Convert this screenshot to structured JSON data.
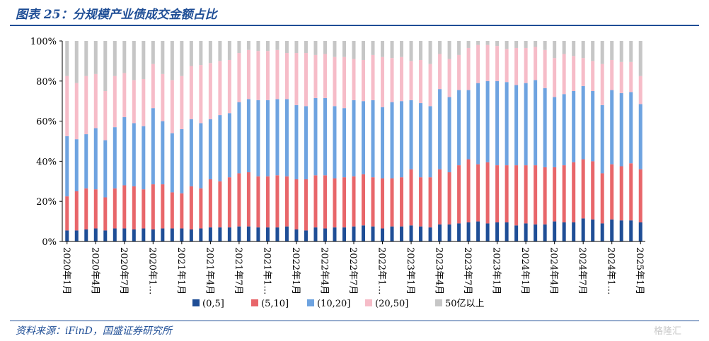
{
  "header": {
    "title": "图表 25：分规模产业债成交金额占比"
  },
  "footer": {
    "source": "资料来源：iFinD，国盛证券研究所",
    "watermark": "格隆汇"
  },
  "chart_data": {
    "type": "bar",
    "stacked": true,
    "percent": true,
    "categories": [
      "2020年1月",
      "2020年2月",
      "2020年3月",
      "2020年4月",
      "2020年5月",
      "2020年6月",
      "2020年7月",
      "2020年8月",
      "2020年9月",
      "2020年10月",
      "2020年11月",
      "2020年12月",
      "2021年1月",
      "2021年2月",
      "2021年3月",
      "2021年4月",
      "2021年5月",
      "2021年6月",
      "2021年7月",
      "2021年8月",
      "2021年9月",
      "2021年10月",
      "2021年11月",
      "2021年12月",
      "2022年1月",
      "2022年2月",
      "2022年3月",
      "2022年4月",
      "2022年5月",
      "2022年6月",
      "2022年7月",
      "2022年8月",
      "2022年9月",
      "2022年10月",
      "2022年11月",
      "2022年12月",
      "2023年1月",
      "2023年2月",
      "2023年3月",
      "2023年4月",
      "2023年5月",
      "2023年6月",
      "2023年7月",
      "2023年8月",
      "2023年9月",
      "2023年10月",
      "2023年11月",
      "2023年12月",
      "2024年1月",
      "2024年2月",
      "2024年3月",
      "2024年4月",
      "2024年5月",
      "2024年6月",
      "2024年7月",
      "2024年8月",
      "2024年9月",
      "2024年10月",
      "2024年11月",
      "2024年12月",
      "2025年1月"
    ],
    "tick_labels": [
      "2020年1月",
      "2020年4月",
      "2020年7月",
      "2020年1…",
      "2021年1月",
      "2021年4月",
      "2021年7月",
      "2021年1…",
      "2022年1月",
      "2022年4月",
      "2022年7月",
      "2022年1…",
      "2023年1月",
      "2023年4月",
      "2023年7月",
      "2023年1月",
      "2024年1月",
      "2024年4月",
      "2024年7月",
      "2024年1…",
      "2025年1月"
    ],
    "tick_every": 3,
    "series": [
      {
        "name": "(0,5]",
        "color": "#1f4e96",
        "values": [
          5.5,
          5.5,
          6,
          6.5,
          5.5,
          6.5,
          6.5,
          6,
          6.5,
          6,
          6.5,
          6.5,
          6.5,
          6,
          6.5,
          7,
          7,
          7,
          7.5,
          7.5,
          7,
          7,
          7,
          7.5,
          6,
          5.5,
          7,
          6.5,
          7,
          7,
          7.5,
          8,
          7.5,
          6.5,
          7.5,
          7.5,
          8,
          7.5,
          7,
          8.5,
          8.5,
          9,
          9.5,
          10,
          9,
          9.5,
          9.5,
          8,
          9,
          8.5,
          8.5,
          10,
          9.5,
          9.5,
          11.5,
          11,
          9,
          11,
          10.5,
          10.5,
          9.5
        ]
      },
      {
        "name": "(5,10]",
        "color": "#e8666a",
        "values": [
          17,
          19.5,
          20.5,
          19.5,
          16.5,
          20,
          21.5,
          21.5,
          19.5,
          22.5,
          22,
          18,
          17.5,
          21.5,
          20,
          24,
          23,
          25,
          26.5,
          27,
          25.5,
          25.5,
          26,
          25,
          25,
          25.5,
          26,
          26.5,
          24.5,
          25,
          25,
          25.5,
          24.5,
          25,
          24,
          24.5,
          28,
          24.5,
          25,
          27.5,
          26,
          29,
          31.5,
          28.5,
          30.5,
          28.5,
          28.5,
          30,
          29,
          29.5,
          28.5,
          27,
          28.5,
          30,
          29.5,
          29,
          25,
          27.5,
          27,
          28.5,
          26.5
        ]
      },
      {
        "name": "(10,20]",
        "color": "#6ea3e0",
        "values": [
          30,
          26,
          27,
          30.5,
          28.5,
          30.5,
          34,
          31.5,
          31.5,
          38,
          31.5,
          29.5,
          32,
          33.5,
          32.5,
          30,
          33,
          32,
          35.5,
          36.5,
          38,
          38,
          38,
          38.5,
          37,
          36.5,
          38.5,
          38.5,
          36,
          34.5,
          38,
          36.5,
          38.5,
          35.5,
          38,
          38,
          34.5,
          37,
          35.5,
          40,
          37.5,
          37.5,
          34.5,
          40.5,
          40.5,
          42,
          41.5,
          40,
          41,
          42.5,
          39.5,
          35,
          35.5,
          35.5,
          36.5,
          35,
          34,
          37,
          36.5,
          35.5,
          32.5
        ]
      },
      {
        "name": "(20,50]",
        "color": "#f6bcc8",
        "values": [
          30,
          28,
          29,
          27,
          24.5,
          25.5,
          22,
          21.5,
          23.5,
          22,
          23.5,
          26.5,
          26.5,
          26.5,
          29,
          28,
          27,
          26.5,
          24.5,
          24.5,
          24.5,
          24.5,
          24.5,
          23,
          26,
          26.5,
          21.5,
          22,
          24.5,
          25.5,
          20.5,
          20.5,
          22.5,
          25,
          22,
          22,
          19.5,
          21.5,
          21,
          17.5,
          19,
          17.5,
          21,
          19,
          18,
          17.5,
          16.5,
          18.5,
          17.5,
          16.5,
          19,
          19.5,
          20,
          17.5,
          14,
          15,
          20.5,
          15,
          15.5,
          15,
          14
        ]
      },
      {
        "name": "50亿以上",
        "color": "#c6c6c6",
        "values": [
          17.5,
          21,
          17.5,
          16.5,
          25,
          17.5,
          16,
          19.5,
          19,
          11.5,
          16.5,
          19.5,
          17.5,
          12.5,
          12,
          11,
          10,
          9.5,
          6,
          4.5,
          5,
          5,
          4.5,
          6,
          6,
          6,
          7,
          6.5,
          8,
          8,
          9,
          9.5,
          7,
          8,
          8.5,
          8,
          10,
          9.5,
          11.5,
          6.5,
          9,
          7,
          3.5,
          2,
          2,
          2.5,
          4,
          3.5,
          3.5,
          3,
          4.5,
          8.5,
          6.5,
          7.5,
          8.5,
          10,
          11.5,
          9.5,
          10.5,
          10.5,
          17.5
        ]
      }
    ],
    "y_ticks": [
      "0%",
      "20%",
      "40%",
      "60%",
      "80%",
      "100%"
    ],
    "ylim": [
      0,
      100
    ],
    "grid": false,
    "legend_position": "bottom-center"
  }
}
